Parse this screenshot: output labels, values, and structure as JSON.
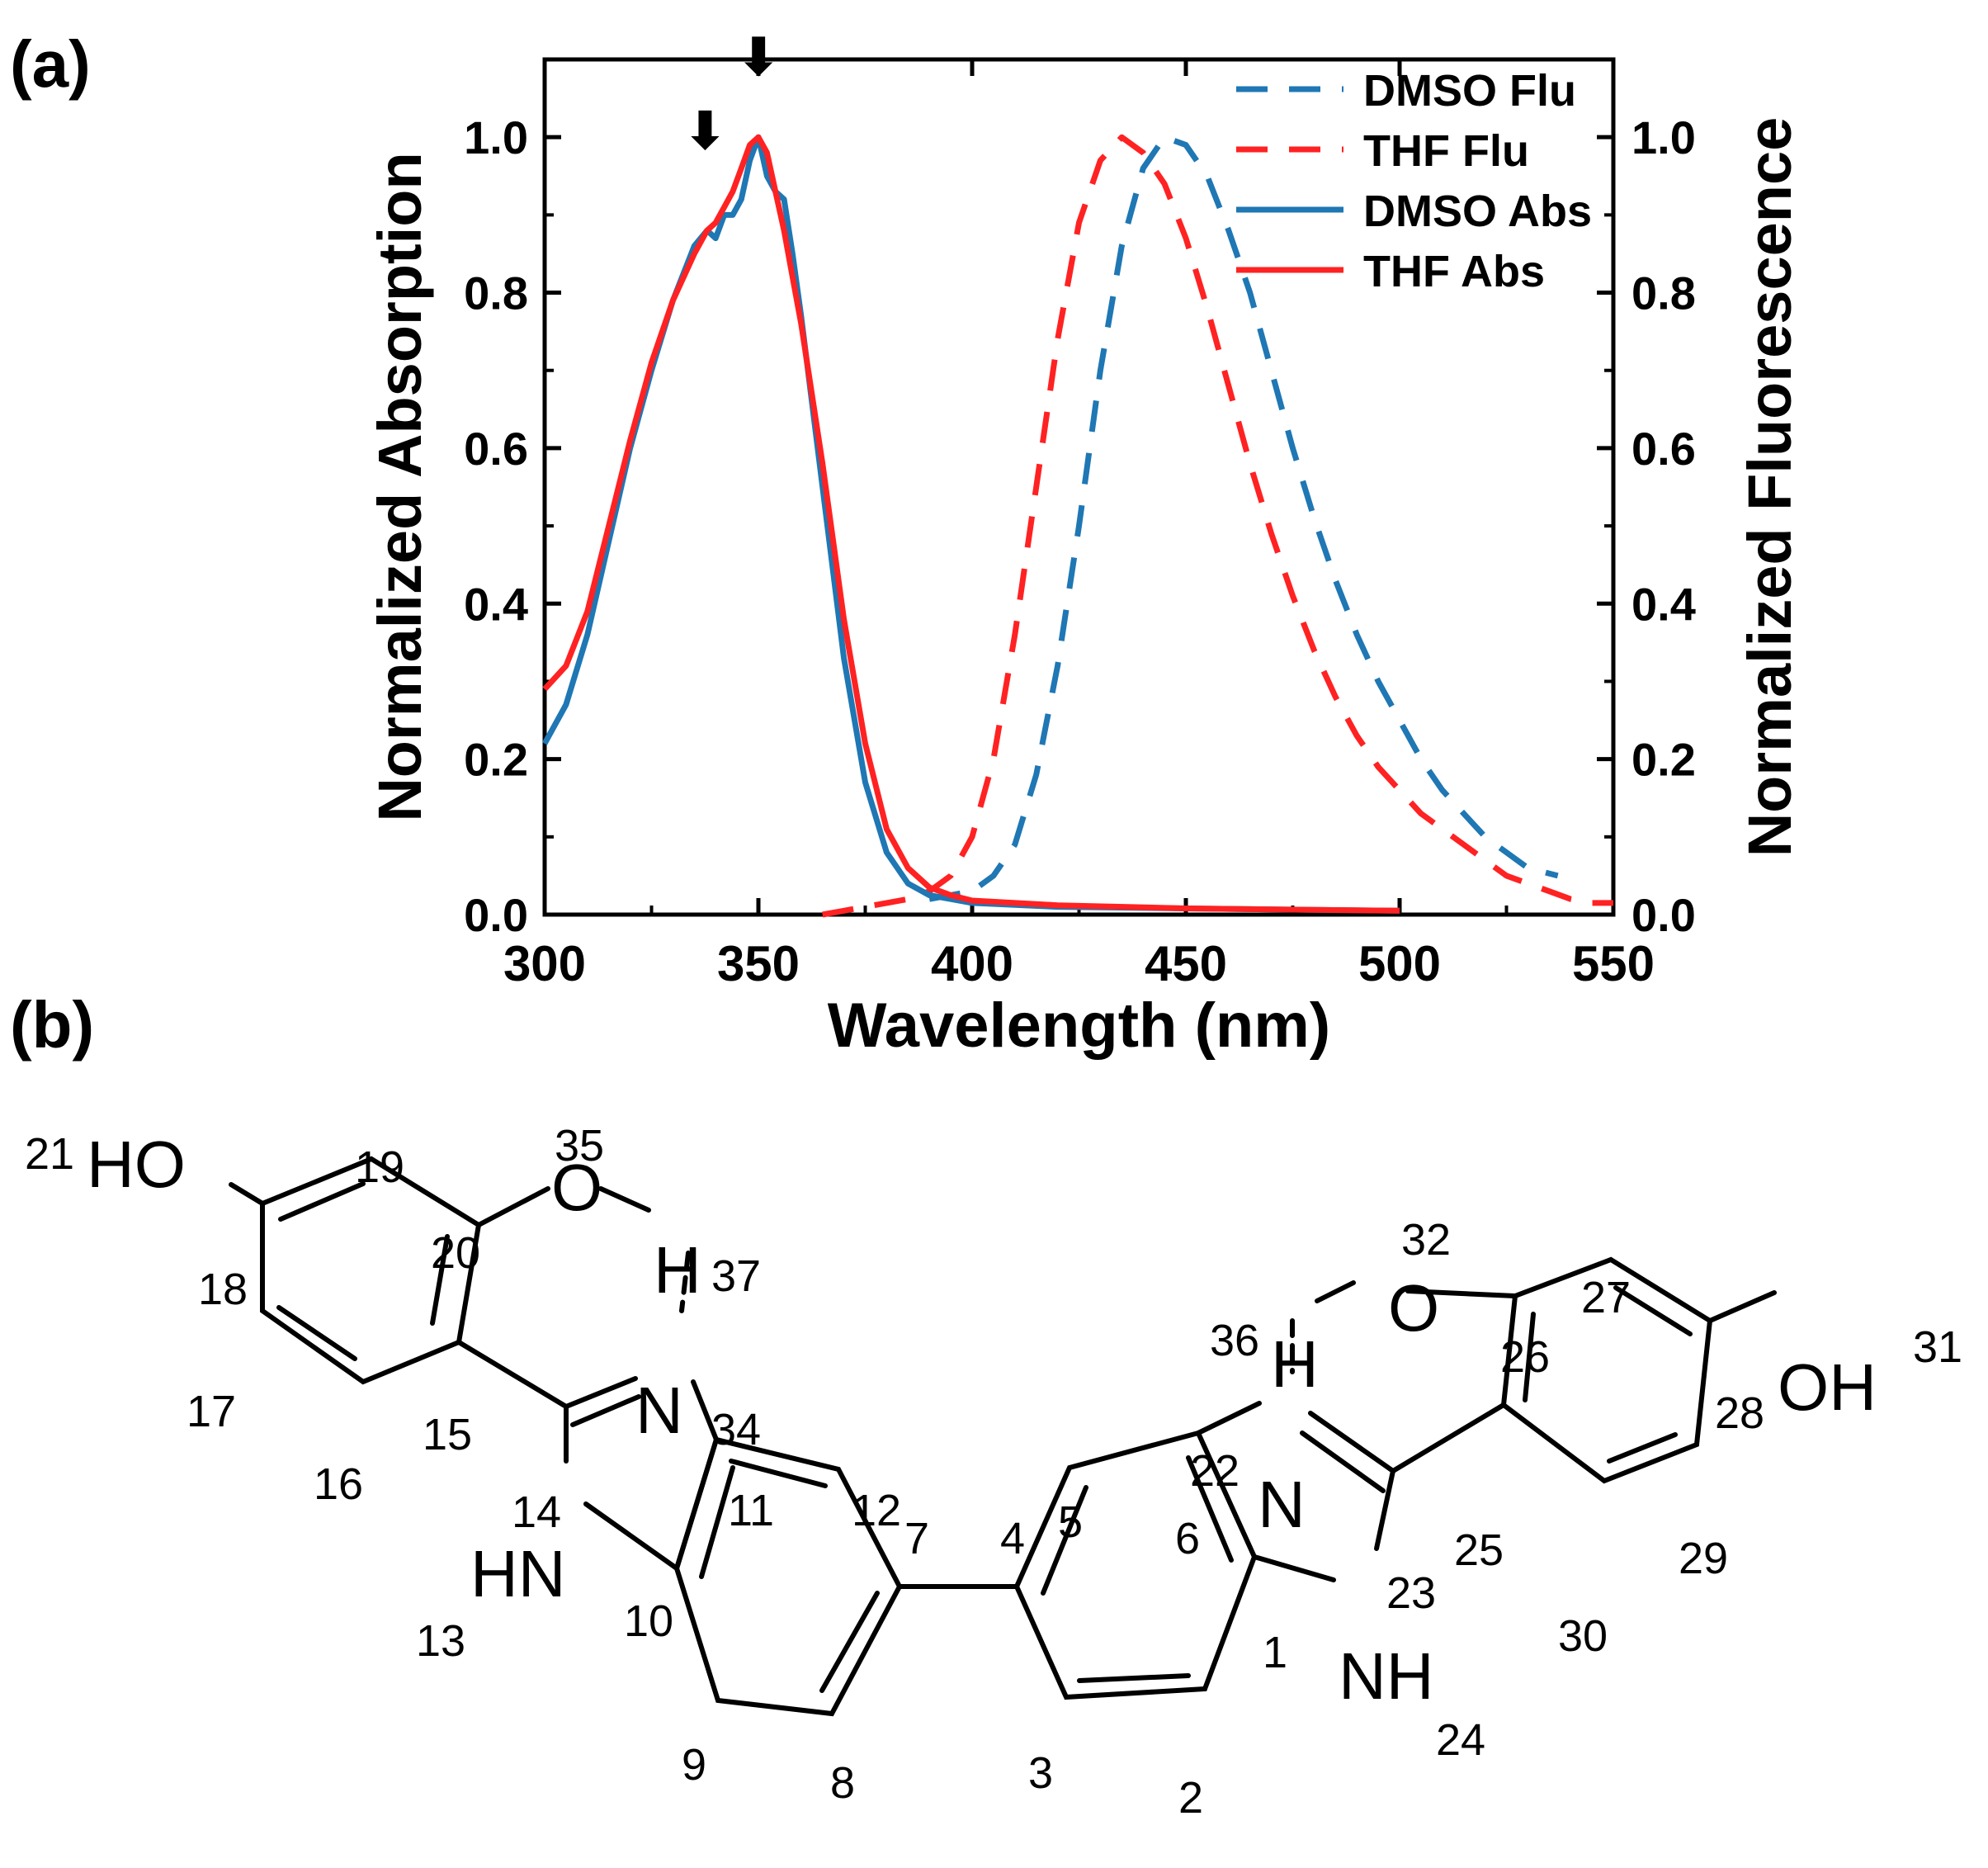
{
  "panels": {
    "a_label": "(a)",
    "b_label": "(b)"
  },
  "chart_data": {
    "type": "line",
    "xlabel": "Wavelength (nm)",
    "ylabel_left": "Normalized Absorption",
    "ylabel_right": "Normalized Fluorescence",
    "xlim": [
      300,
      550
    ],
    "ylim": [
      0,
      1.1
    ],
    "xticks": [
      300,
      350,
      400,
      450,
      500,
      550
    ],
    "yticks": [
      0.0,
      0.2,
      0.4,
      0.6,
      0.8,
      1.0
    ],
    "grid": false,
    "legend_position": "top-right",
    "series": [
      {
        "name": "DMSO Flu",
        "color": "#1f77b4",
        "style": "dashed",
        "axis": "right",
        "x": [
          390,
          395,
          400,
          405,
          410,
          415,
          420,
          425,
          430,
          435,
          440,
          445,
          450,
          455,
          460,
          465,
          470,
          475,
          480,
          485,
          490,
          495,
          500,
          505,
          510,
          515,
          520,
          525,
          530,
          537
        ],
        "y": [
          0.02,
          0.025,
          0.03,
          0.05,
          0.09,
          0.18,
          0.32,
          0.5,
          0.7,
          0.86,
          0.96,
          1.0,
          0.99,
          0.95,
          0.88,
          0.8,
          0.7,
          0.6,
          0.51,
          0.43,
          0.36,
          0.3,
          0.25,
          0.2,
          0.16,
          0.13,
          0.1,
          0.08,
          0.06,
          0.05
        ]
      },
      {
        "name": "THF Flu",
        "color": "#ff2222",
        "style": "dashed",
        "axis": "right",
        "x": [
          365,
          370,
          375,
          380,
          385,
          390,
          395,
          400,
          405,
          410,
          415,
          420,
          425,
          430,
          435,
          440,
          445,
          450,
          455,
          460,
          465,
          470,
          475,
          480,
          485,
          490,
          495,
          500,
          505,
          510,
          515,
          520,
          525,
          530,
          535,
          540,
          545,
          550
        ],
        "y": [
          0.0,
          0.005,
          0.01,
          0.015,
          0.02,
          0.03,
          0.05,
          0.1,
          0.2,
          0.36,
          0.55,
          0.74,
          0.89,
          0.97,
          1.0,
          0.98,
          0.94,
          0.87,
          0.78,
          0.68,
          0.58,
          0.49,
          0.41,
          0.34,
          0.28,
          0.23,
          0.19,
          0.16,
          0.13,
          0.11,
          0.09,
          0.07,
          0.05,
          0.04,
          0.03,
          0.02,
          0.015,
          0.015
        ]
      },
      {
        "name": "DMSO Abs",
        "color": "#1f77b4",
        "style": "solid",
        "axis": "left",
        "x": [
          300,
          305,
          310,
          315,
          320,
          325,
          330,
          335,
          338,
          340,
          342,
          344,
          346,
          348,
          350,
          352,
          354,
          356,
          358,
          360,
          365,
          370,
          375,
          380,
          385,
          390,
          395,
          400,
          420,
          450,
          480,
          500
        ],
        "y": [
          0.22,
          0.27,
          0.36,
          0.48,
          0.6,
          0.7,
          0.79,
          0.86,
          0.88,
          0.87,
          0.9,
          0.9,
          0.92,
          0.97,
          1.0,
          0.95,
          0.93,
          0.92,
          0.85,
          0.77,
          0.55,
          0.33,
          0.17,
          0.08,
          0.04,
          0.025,
          0.02,
          0.015,
          0.01,
          0.008,
          0.006,
          0.005
        ]
      },
      {
        "name": "THF Abs",
        "color": "#ff2222",
        "style": "solid",
        "axis": "left",
        "x": [
          300,
          305,
          310,
          315,
          320,
          325,
          330,
          335,
          338,
          340,
          342,
          344,
          346,
          348,
          350,
          352,
          354,
          356,
          358,
          360,
          365,
          370,
          375,
          380,
          385,
          390,
          395,
          400,
          420,
          450,
          480,
          500
        ],
        "y": [
          0.29,
          0.32,
          0.39,
          0.5,
          0.61,
          0.71,
          0.79,
          0.85,
          0.88,
          0.89,
          0.91,
          0.93,
          0.96,
          0.99,
          1.0,
          0.98,
          0.93,
          0.88,
          0.82,
          0.76,
          0.58,
          0.38,
          0.22,
          0.11,
          0.06,
          0.035,
          0.025,
          0.018,
          0.012,
          0.008,
          0.006,
          0.005
        ]
      }
    ],
    "annotations": [
      "⬇",
      "⬇"
    ]
  },
  "molecule": {
    "atom_labels": [
      "HO",
      "O",
      "H",
      "N",
      "HN",
      "N",
      "H",
      "O",
      "OH",
      "NH",
      "24"
    ],
    "numbers": [
      "21",
      "19",
      "35",
      "20",
      "37",
      "18",
      "17",
      "15",
      "34",
      "16",
      "14",
      "11",
      "12",
      "13",
      "10",
      "9",
      "8",
      "7",
      "4",
      "5",
      "6",
      "22",
      "36",
      "32",
      "27",
      "26",
      "28",
      "31",
      "23",
      "25",
      "29",
      "30",
      "1",
      "3",
      "2"
    ]
  }
}
